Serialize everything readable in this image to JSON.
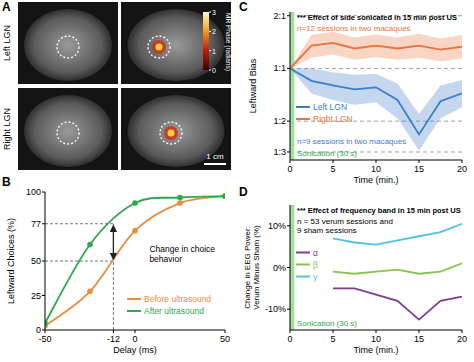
{
  "chart_data": [
    {
      "type": "image",
      "label": "A",
      "row_labels": [
        "Left LGN",
        "Right LGN"
      ],
      "colorbar_label": "MR Phase (radians)",
      "colorbar_range": [
        0,
        3
      ],
      "colorbar_ticks": [
        0,
        1,
        2,
        3
      ],
      "scale_bar": "1 cm"
    },
    {
      "type": "line",
      "label": "B",
      "x": [
        -50,
        -25,
        0,
        25,
        50
      ],
      "series": [
        {
          "name": "Before ultrasound",
          "color": "#ef8a3a",
          "marker": "circle",
          "values": [
            3,
            28,
            72,
            92,
            97
          ]
        },
        {
          "name": "After ultrasound",
          "color": "#2ea84c",
          "marker": "circle",
          "values": [
            5,
            62,
            92,
            96,
            97
          ]
        }
      ],
      "xlim": [
        -50,
        50
      ],
      "ylim": [
        0,
        100
      ],
      "xticks": [
        -50,
        -12,
        0,
        50
      ],
      "yticks": [
        0,
        25,
        50,
        77,
        100
      ],
      "xlabel": "Delay (ms)",
      "ylabel": "Leftward Choices (%)",
      "annotation": [
        "Change in choice",
        "behavior"
      ],
      "annotation_x": -12,
      "annotation_y": [
        50,
        77
      ],
      "legend": "lower right"
    },
    {
      "type": "line",
      "label": "C",
      "title": "*** Effect of side sonicated in 15 min post US",
      "x": [
        0,
        2.5,
        5,
        7.5,
        10,
        12.5,
        15,
        17.5,
        20
      ],
      "series": [
        {
          "name": "Left LGN",
          "color": "#3d7cc9",
          "values": [
            1,
            0.85,
            0.8,
            0.76,
            0.78,
            0.66,
            0.42,
            0.65,
            0.72
          ],
          "lower": [
            1,
            0.72,
            0.66,
            0.62,
            0.64,
            0.52,
            0.34,
            0.52,
            0.6
          ],
          "upper": [
            1,
            1.0,
            0.95,
            0.92,
            0.93,
            0.82,
            0.55,
            0.8,
            0.86
          ],
          "note": "n=9 sessions in two macaques"
        },
        {
          "name": "Right LGN",
          "color": "#e8743b",
          "values": [
            1,
            1.35,
            1.4,
            1.3,
            1.35,
            1.3,
            1.35,
            1.28,
            1.33
          ],
          "lower": [
            1,
            1.15,
            1.2,
            1.12,
            1.16,
            1.12,
            1.15,
            1.1,
            1.14
          ],
          "upper": [
            1,
            1.55,
            1.62,
            1.5,
            1.56,
            1.5,
            1.58,
            1.48,
            1.55
          ],
          "note": "n=12 sessions in two macaques"
        }
      ],
      "xlim": [
        0,
        20
      ],
      "ylim": [
        0.3,
        2.1
      ],
      "xticks": [
        0,
        5,
        10,
        15,
        20
      ],
      "yticks": [
        {
          "value": 0.3333,
          "label": "1:3"
        },
        {
          "value": 0.5,
          "label": "1:2"
        },
        {
          "value": 1,
          "label": "1:1"
        },
        {
          "value": 2,
          "label": "2:1"
        }
      ],
      "log": "y",
      "grid": true,
      "legend": "lower left",
      "xlabel": "Time (min.)",
      "ylabel": "Leftward Bias",
      "sonication": [
        0,
        0.5
      ],
      "sonication_label": "Sonication (30 s)"
    },
    {
      "type": "line",
      "label": "D",
      "title": "*** Effect of frequency band in 15 min post US",
      "note": [
        "n = 53 verum sessions and",
        "9 sham sessions"
      ],
      "x": [
        5,
        7.5,
        10,
        12.5,
        15,
        17.5,
        20
      ],
      "series": [
        {
          "name": "α",
          "color": "#7d3c98",
          "values": [
            -5,
            -5,
            -6.5,
            -8,
            -12.5,
            -8,
            -7
          ]
        },
        {
          "name": "β",
          "color": "#8cc152",
          "values": [
            -1,
            -1.5,
            -1,
            -0.5,
            -1.5,
            -1,
            1
          ]
        },
        {
          "name": "γ",
          "color": "#4fc3e0",
          "values": [
            7,
            6,
            5.5,
            6.5,
            7.5,
            8.5,
            10.5
          ]
        }
      ],
      "xlim": [
        0,
        20
      ],
      "ylim": [
        -15,
        15
      ],
      "xticks": [
        0,
        5,
        10,
        15,
        20
      ],
      "yticks": [
        {
          "value": -10,
          "label": "-10%"
        },
        {
          "value": 0,
          "label": "0%"
        },
        {
          "value": 10,
          "label": "10%"
        }
      ],
      "legend": "center left",
      "xlabel": "Time (min.)",
      "ylabel": [
        "Change in EEG Power:",
        "Verum Minus Sham (%)"
      ],
      "sonication": [
        0,
        0.5
      ],
      "sonication_label": "Sonication (30 s)"
    }
  ]
}
